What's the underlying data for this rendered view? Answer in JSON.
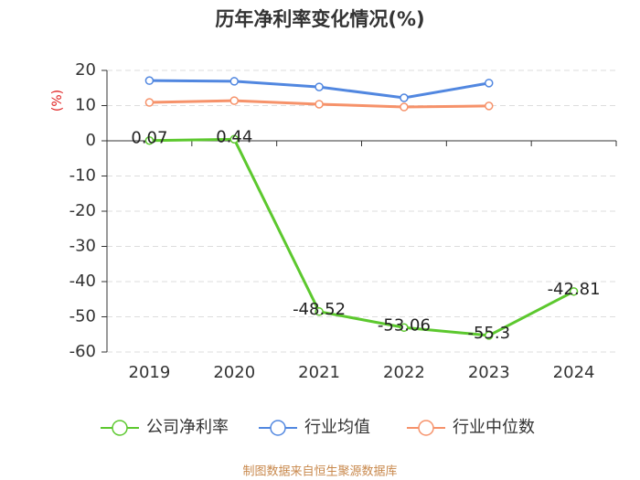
{
  "chart_data": {
    "type": "line",
    "title": "历年净利率变化情况(%)",
    "y_label": "(%)",
    "categories": [
      "2019",
      "2020",
      "2021",
      "2022",
      "2023",
      "2024"
    ],
    "series": [
      {
        "name": "公司净利率",
        "color": "#5cc82e",
        "values": [
          0.07,
          0.44,
          -48.52,
          -53.06,
          -55.3,
          -42.81
        ],
        "data_labels": true
      },
      {
        "name": "行业均值",
        "color": "#5187e0",
        "values": [
          17.1,
          16.9,
          15.3,
          12.2,
          16.4,
          null
        ]
      },
      {
        "name": "行业中位数",
        "color": "#f6926a",
        "values": [
          10.9,
          11.4,
          10.4,
          9.6,
          9.9,
          null
        ]
      }
    ],
    "ylim": [
      -60,
      20
    ],
    "yticks": [
      -60,
      -50,
      -40,
      -30,
      -20,
      -10,
      0,
      10,
      20
    ],
    "grid": true,
    "legend": "bottom",
    "source": "制图数据来自恒生聚源数据库"
  }
}
